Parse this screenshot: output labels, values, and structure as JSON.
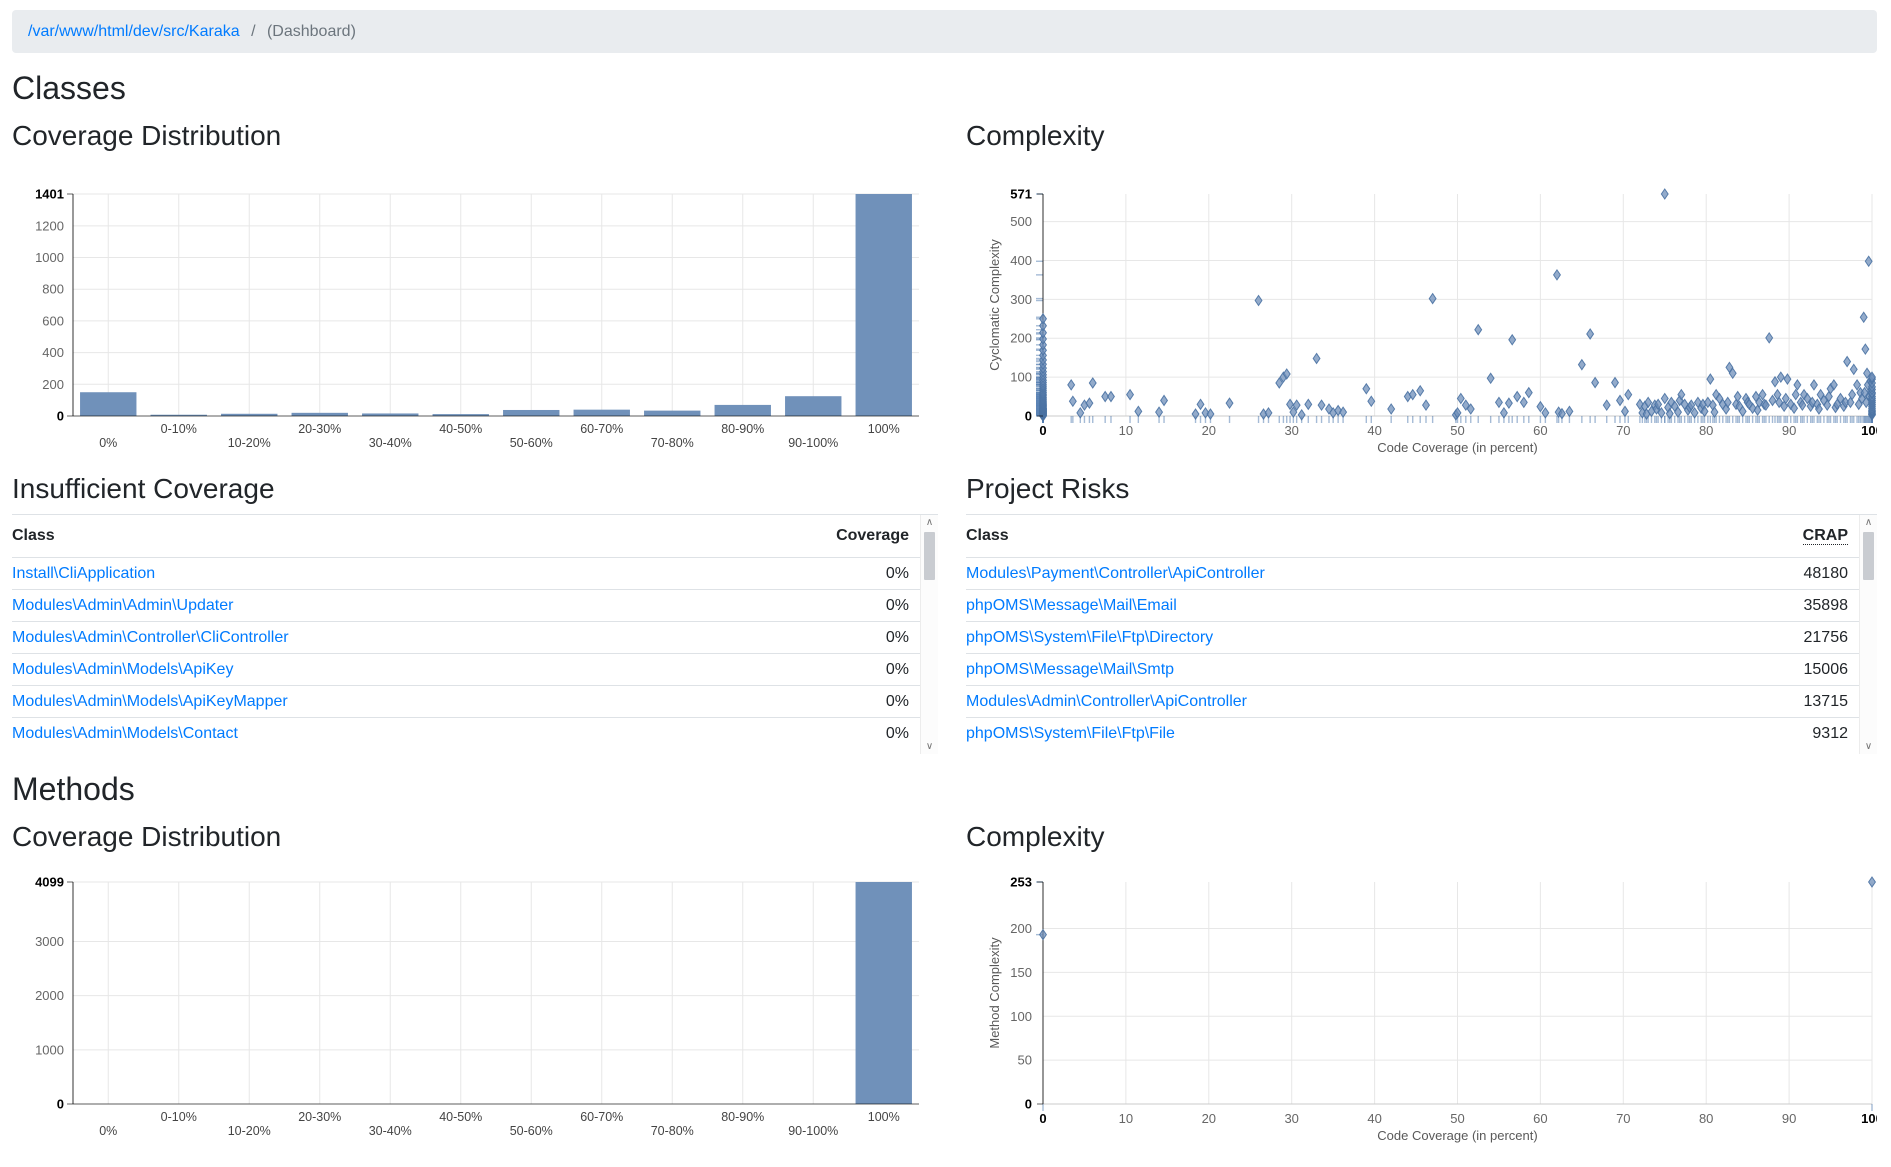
{
  "breadcrumb": {
    "path": "/var/www/html/dev/src/Karaka",
    "separator": "/",
    "current": "(Dashboard)"
  },
  "sections": {
    "classes": {
      "title": "Classes",
      "coverage_title": "Coverage Distribution",
      "complexity_title": "Complexity",
      "insufficient_title": "Insufficient Coverage",
      "risks_title": "Project Risks"
    },
    "methods": {
      "title": "Methods",
      "coverage_title": "Coverage Distribution",
      "complexity_title": "Complexity"
    }
  },
  "tables": {
    "insufficient_coverage": {
      "columns": [
        "Class",
        "Coverage"
      ],
      "rows": [
        {
          "class": "Install\\CliApplication",
          "value": "0%"
        },
        {
          "class": "Modules\\Admin\\Admin\\Updater",
          "value": "0%"
        },
        {
          "class": "Modules\\Admin\\Controller\\CliController",
          "value": "0%"
        },
        {
          "class": "Modules\\Admin\\Models\\ApiKey",
          "value": "0%"
        },
        {
          "class": "Modules\\Admin\\Models\\ApiKeyMapper",
          "value": "0%"
        },
        {
          "class": "Modules\\Admin\\Models\\Contact",
          "value": "0%"
        }
      ]
    },
    "project_risks": {
      "columns": [
        "Class",
        "CRAP"
      ],
      "rows": [
        {
          "class": "Modules\\Payment\\Controller\\ApiController",
          "value": "48180"
        },
        {
          "class": "phpOMS\\Message\\Mail\\Email",
          "value": "35898"
        },
        {
          "class": "phpOMS\\System\\File\\Ftp\\Directory",
          "value": "21756"
        },
        {
          "class": "phpOMS\\Message\\Mail\\Smtp",
          "value": "15006"
        },
        {
          "class": "Modules\\Admin\\Controller\\ApiController",
          "value": "13715"
        },
        {
          "class": "phpOMS\\System\\File\\Ftp\\File",
          "value": "9312"
        }
      ]
    }
  },
  "ui": {
    "scroll_up_glyph": "∧",
    "scroll_down_glyph": "∨"
  },
  "colors": {
    "accent_link": "#007bff",
    "bar_fill": "#7091ba",
    "point_fill": "#6f8fba",
    "point_stroke": "#4a72a3",
    "rug": "#5b83b5",
    "grid": "#e7e7e7",
    "axis_line": "#000000",
    "tick_label": "#666666",
    "axis_title": "#595959",
    "breadcrumb_bg": "#e9ecef",
    "breadcrumb_active": "#6c757d",
    "table_border": "#dee2e6"
  },
  "chart_data": [
    {
      "id": "class-coverage",
      "type": "bar",
      "title": "Coverage Distribution (Classes)",
      "categories": [
        "0%",
        "0-10%",
        "10-20%",
        "20-30%",
        "30-40%",
        "40-50%",
        "50-60%",
        "60-70%",
        "70-80%",
        "80-90%",
        "90-100%",
        "100%"
      ],
      "values": [
        150,
        8,
        14,
        20,
        16,
        12,
        38,
        40,
        34,
        70,
        125,
        1401
      ],
      "xlabel": "",
      "ylabel": "",
      "ylim": [
        0,
        1401
      ],
      "yticks": [
        0,
        200,
        400,
        600,
        800,
        1000,
        1200,
        1401
      ],
      "grid": true,
      "legend": "none",
      "margins": {
        "t": 33,
        "r": 19,
        "b": 50,
        "l": 61
      }
    },
    {
      "id": "class-complexity",
      "type": "scatter",
      "title": "Complexity (Classes)",
      "xlabel": "Code Coverage (in percent)",
      "ylabel": "Cyclomatic Complexity",
      "xlim": [
        0,
        100
      ],
      "ylim": [
        0,
        571
      ],
      "xticks": [
        0,
        10,
        20,
        30,
        40,
        50,
        60,
        70,
        80,
        90,
        100
      ],
      "yticks": [
        0,
        100,
        200,
        300,
        400,
        500,
        571
      ],
      "grid": true,
      "legend": "none",
      "margins": {
        "t": 33,
        "r": 5,
        "b": 50,
        "l": 77
      },
      "points": [
        [
          0,
          0
        ],
        [
          0,
          1
        ],
        [
          0,
          2
        ],
        [
          0,
          3
        ],
        [
          0,
          4
        ],
        [
          0,
          5
        ],
        [
          0,
          6
        ],
        [
          0,
          7
        ],
        [
          0,
          8
        ],
        [
          0,
          9
        ],
        [
          0,
          10
        ],
        [
          0,
          11
        ],
        [
          0,
          12
        ],
        [
          0,
          13
        ],
        [
          0,
          14
        ],
        [
          0,
          15
        ],
        [
          0,
          16
        ],
        [
          0,
          17
        ],
        [
          0,
          18
        ],
        [
          0,
          19
        ],
        [
          0,
          20
        ],
        [
          0,
          22
        ],
        [
          0,
          24
        ],
        [
          0,
          26
        ],
        [
          0,
          28
        ],
        [
          0,
          30
        ],
        [
          0,
          32
        ],
        [
          0,
          35
        ],
        [
          0,
          38
        ],
        [
          0,
          41
        ],
        [
          0,
          44
        ],
        [
          0,
          48
        ],
        [
          0,
          52
        ],
        [
          0,
          56
        ],
        [
          0,
          60
        ],
        [
          0,
          65
        ],
        [
          0,
          70
        ],
        [
          0,
          75
        ],
        [
          0,
          80
        ],
        [
          0,
          86
        ],
        [
          0,
          92
        ],
        [
          0,
          99
        ],
        [
          0,
          106
        ],
        [
          0,
          114
        ],
        [
          0,
          123
        ],
        [
          0,
          133
        ],
        [
          0,
          144
        ],
        [
          0,
          156
        ],
        [
          0,
          169
        ],
        [
          0,
          183
        ],
        [
          0,
          198
        ],
        [
          0,
          214
        ],
        [
          0,
          232
        ],
        [
          0,
          250
        ],
        [
          3.4,
          80
        ],
        [
          3.6,
          38
        ],
        [
          4.5,
          8
        ],
        [
          5,
          28
        ],
        [
          5.6,
          33
        ],
        [
          6,
          85
        ],
        [
          7.5,
          50
        ],
        [
          8.2,
          50
        ],
        [
          10.5,
          55
        ],
        [
          11.5,
          12
        ],
        [
          14,
          10
        ],
        [
          14.6,
          40
        ],
        [
          18.4,
          5
        ],
        [
          19,
          30
        ],
        [
          19.6,
          8
        ],
        [
          20.2,
          5
        ],
        [
          22.5,
          33
        ],
        [
          26,
          297
        ],
        [
          26.6,
          5
        ],
        [
          27.2,
          8
        ],
        [
          28.5,
          85
        ],
        [
          29,
          100
        ],
        [
          29.4,
          108
        ],
        [
          29.8,
          30
        ],
        [
          30.2,
          10
        ],
        [
          30.6,
          28
        ],
        [
          31.2,
          3
        ],
        [
          32,
          30
        ],
        [
          33,
          148
        ],
        [
          33.6,
          28
        ],
        [
          34.5,
          18
        ],
        [
          35,
          8
        ],
        [
          35.6,
          14
        ],
        [
          36.2,
          10
        ],
        [
          39,
          70
        ],
        [
          39.6,
          38
        ],
        [
          42,
          18
        ],
        [
          44,
          50
        ],
        [
          44.6,
          55
        ],
        [
          45.5,
          65
        ],
        [
          46.2,
          28
        ],
        [
          47,
          302
        ],
        [
          49.8,
          3
        ],
        [
          50,
          8
        ],
        [
          50.4,
          45
        ],
        [
          51,
          28
        ],
        [
          51.6,
          18
        ],
        [
          52.5,
          222
        ],
        [
          54,
          97
        ],
        [
          55,
          35
        ],
        [
          55.6,
          8
        ],
        [
          56.2,
          33
        ],
        [
          56.6,
          196
        ],
        [
          57.2,
          50
        ],
        [
          58,
          35
        ],
        [
          58.6,
          60
        ],
        [
          60,
          24
        ],
        [
          60.6,
          8
        ],
        [
          62,
          363
        ],
        [
          62.2,
          10
        ],
        [
          62.6,
          6
        ],
        [
          63.5,
          12
        ],
        [
          65,
          132
        ],
        [
          66,
          211
        ],
        [
          66.6,
          86
        ],
        [
          68,
          28
        ],
        [
          69,
          86
        ],
        [
          69.6,
          40
        ],
        [
          70.2,
          12
        ],
        [
          70.6,
          55
        ],
        [
          72,
          30
        ],
        [
          72.3,
          8
        ],
        [
          72.6,
          25
        ],
        [
          72.8,
          5
        ],
        [
          73,
          35
        ],
        [
          73.4,
          12
        ],
        [
          73.8,
          28
        ],
        [
          74,
          18
        ],
        [
          74.2,
          30
        ],
        [
          74.6,
          8
        ],
        [
          75,
          45
        ],
        [
          75,
          571
        ],
        [
          75.4,
          22
        ],
        [
          75.6,
          6
        ],
        [
          75.8,
          35
        ],
        [
          76.2,
          25
        ],
        [
          76.6,
          10
        ],
        [
          76.8,
          40
        ],
        [
          77,
          55
        ],
        [
          77.4,
          30
        ],
        [
          77.8,
          15
        ],
        [
          78,
          22
        ],
        [
          78.2,
          28
        ],
        [
          78.6,
          8
        ],
        [
          79,
          35
        ],
        [
          79.4,
          20
        ],
        [
          79.6,
          30
        ],
        [
          79.8,
          12
        ],
        [
          80.2,
          35
        ],
        [
          80.5,
          95
        ],
        [
          80.8,
          28
        ],
        [
          81,
          10
        ],
        [
          81.2,
          55
        ],
        [
          81.6,
          45
        ],
        [
          82,
          30
        ],
        [
          82.4,
          18
        ],
        [
          82.6,
          35
        ],
        [
          82.8,
          125
        ],
        [
          83.2,
          110
        ],
        [
          83.6,
          30
        ],
        [
          83.8,
          50
        ],
        [
          84,
          25
        ],
        [
          84.4,
          12
        ],
        [
          84.8,
          45
        ],
        [
          85,
          35
        ],
        [
          85.2,
          30
        ],
        [
          85.6,
          20
        ],
        [
          86,
          50
        ],
        [
          86.2,
          15
        ],
        [
          86.4,
          35
        ],
        [
          86.8,
          55
        ],
        [
          87,
          30
        ],
        [
          87.2,
          28
        ],
        [
          87.6,
          201
        ],
        [
          88,
          40
        ],
        [
          88.3,
          88
        ],
        [
          88.6,
          55
        ],
        [
          88.8,
          35
        ],
        [
          89,
          100
        ],
        [
          89.4,
          25
        ],
        [
          89.6,
          45
        ],
        [
          89.8,
          95
        ],
        [
          90.2,
          30
        ],
        [
          90.6,
          20
        ],
        [
          90.8,
          55
        ],
        [
          91,
          80
        ],
        [
          91.4,
          35
        ],
        [
          91.6,
          28
        ],
        [
          91.8,
          55
        ],
        [
          92.2,
          45
        ],
        [
          92.6,
          25
        ],
        [
          92.8,
          35
        ],
        [
          93,
          80
        ],
        [
          93.4,
          30
        ],
        [
          93.6,
          18
        ],
        [
          93.8,
          55
        ],
        [
          94.2,
          40
        ],
        [
          94.6,
          28
        ],
        [
          94.8,
          50
        ],
        [
          95,
          70
        ],
        [
          95.4,
          80
        ],
        [
          95.6,
          22
        ],
        [
          95.8,
          30
        ],
        [
          96.2,
          45
        ],
        [
          96.6,
          25
        ],
        [
          96.8,
          35
        ],
        [
          97,
          140
        ],
        [
          97.4,
          35
        ],
        [
          97.6,
          55
        ],
        [
          97.8,
          120
        ],
        [
          98.2,
          80
        ],
        [
          98.4,
          30
        ],
        [
          98.6,
          60
        ],
        [
          98.8,
          45
        ],
        [
          99,
          254
        ],
        [
          99.1,
          60
        ],
        [
          99.2,
          172
        ],
        [
          99.3,
          35
        ],
        [
          99.4,
          110
        ],
        [
          99.5,
          80
        ],
        [
          99.6,
          398
        ],
        [
          99.7,
          50
        ],
        [
          99.8,
          90
        ],
        [
          99.9,
          65
        ],
        [
          100,
          3
        ],
        [
          100,
          5
        ],
        [
          100,
          8
        ],
        [
          100,
          12
        ],
        [
          100,
          15
        ],
        [
          100,
          20
        ],
        [
          100,
          25
        ],
        [
          100,
          30
        ],
        [
          100,
          35
        ],
        [
          100,
          40
        ],
        [
          100,
          45
        ],
        [
          100,
          50
        ],
        [
          100,
          57
        ],
        [
          100,
          60
        ],
        [
          100,
          68
        ],
        [
          100,
          75
        ],
        [
          100,
          85
        ],
        [
          100,
          95
        ],
        [
          100,
          100
        ]
      ]
    },
    {
      "id": "method-coverage",
      "type": "bar",
      "title": "Coverage Distribution (Methods)",
      "categories": [
        "0%",
        "0-10%",
        "10-20%",
        "20-30%",
        "30-40%",
        "40-50%",
        "50-60%",
        "60-70%",
        "70-80%",
        "80-90%",
        "90-100%",
        "100%"
      ],
      "values": [
        null,
        null,
        null,
        null,
        null,
        null,
        null,
        null,
        null,
        null,
        null,
        4099
      ],
      "xlabel": "",
      "ylabel": "",
      "ylim": [
        0,
        4099
      ],
      "yticks": [
        0,
        1000,
        2000,
        3000,
        4099
      ],
      "grid": true,
      "legend": "none",
      "margins": {
        "t": 20,
        "r": 19,
        "b": 50,
        "l": 61
      }
    },
    {
      "id": "method-complexity",
      "type": "scatter",
      "title": "Complexity (Methods)",
      "xlabel": "Code Coverage (in percent)",
      "ylabel": "Method Complexity",
      "xlim": [
        0,
        100
      ],
      "ylim": [
        0,
        253
      ],
      "xticks": [
        0,
        10,
        20,
        30,
        40,
        50,
        60,
        70,
        80,
        90,
        100
      ],
      "yticks": [
        0,
        50,
        100,
        150,
        200,
        253
      ],
      "grid": true,
      "legend": "none",
      "margins": {
        "t": 20,
        "r": 5,
        "b": 50,
        "l": 77
      },
      "points": [
        [
          0,
          193
        ],
        [
          100,
          253
        ]
      ]
    }
  ]
}
